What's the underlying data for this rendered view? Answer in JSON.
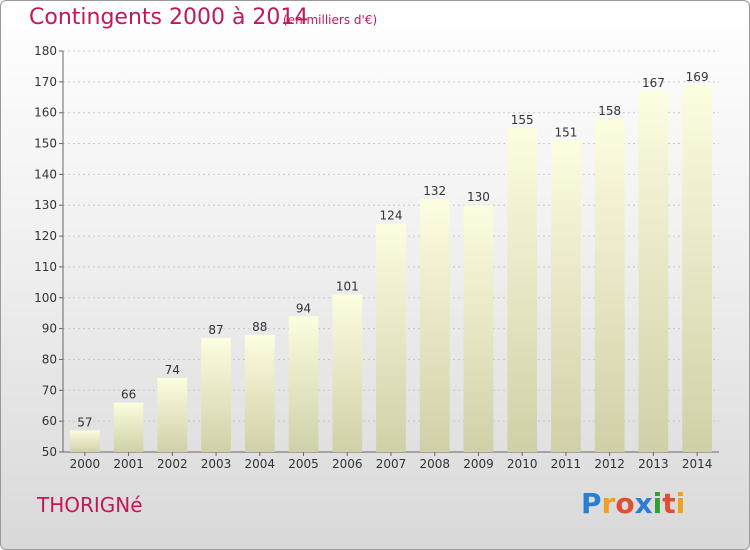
{
  "header": {
    "title": "Contingents 2000 à 2014",
    "subtitle": "(en milliers d'€)"
  },
  "commune": "THORIGNé",
  "logo": {
    "letters": [
      {
        "ch": "P",
        "color": "#2a7fd4"
      },
      {
        "ch": "r",
        "color": "#f0a020"
      },
      {
        "ch": "o",
        "color": "#e05030"
      },
      {
        "ch": "x",
        "color": "#2a7fd4"
      },
      {
        "ch": "i",
        "color": "#30a030"
      },
      {
        "ch": "t",
        "color": "#e05030"
      },
      {
        "ch": "i",
        "color": "#f0a020"
      }
    ]
  },
  "chart_data": {
    "type": "bar",
    "categories": [
      "2000",
      "2001",
      "2002",
      "2003",
      "2004",
      "2005",
      "2006",
      "2007",
      "2008",
      "2009",
      "2010",
      "2011",
      "2012",
      "2013",
      "2014"
    ],
    "values": [
      57,
      66,
      74,
      87,
      88,
      94,
      101,
      124,
      132,
      130,
      155,
      151,
      158,
      167,
      169
    ],
    "ylim": [
      50,
      180
    ],
    "yticks": [
      50,
      60,
      70,
      80,
      90,
      100,
      110,
      120,
      130,
      140,
      150,
      160,
      170,
      180
    ],
    "grid": true,
    "bar_color_top": "#fdfde0",
    "bar_color_bottom": "#d0d0a8"
  }
}
